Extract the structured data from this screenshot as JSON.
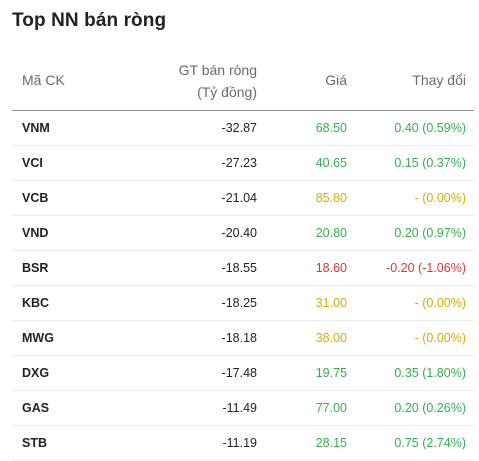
{
  "title": "Top NN bán ròng",
  "columns": {
    "symbol": "Mã CK",
    "value_line1": "GT bán ròng",
    "value_line2": "(Tỷ đồng)",
    "price": "Giá",
    "change": "Thay đổi"
  },
  "colors": {
    "up": "#2fb24c",
    "reference": "#d7ac00",
    "down": "#e8322f"
  },
  "rows": [
    {
      "symbol": "VNM",
      "value": "-32.87",
      "price": "68.50",
      "change": "0.40 (0.59%)",
      "trend": "up"
    },
    {
      "symbol": "VCI",
      "value": "-27.23",
      "price": "40.65",
      "change": "0.15 (0.37%)",
      "trend": "up"
    },
    {
      "symbol": "VCB",
      "value": "-21.04",
      "price": "85.80",
      "change": "- (0.00%)",
      "trend": "ref"
    },
    {
      "symbol": "VND",
      "value": "-20.40",
      "price": "20.80",
      "change": "0.20 (0.97%)",
      "trend": "up"
    },
    {
      "symbol": "BSR",
      "value": "-18.55",
      "price": "18.60",
      "change": "-0.20 (-1.06%)",
      "trend": "down"
    },
    {
      "symbol": "KBC",
      "value": "-18.25",
      "price": "31.00",
      "change": "- (0.00%)",
      "trend": "ref"
    },
    {
      "symbol": "MWG",
      "value": "-18.18",
      "price": "38.00",
      "change": "- (0.00%)",
      "trend": "ref"
    },
    {
      "symbol": "DXG",
      "value": "-17.48",
      "price": "19.75",
      "change": "0.35 (1.80%)",
      "trend": "up"
    },
    {
      "symbol": "GAS",
      "value": "-11.49",
      "price": "77.00",
      "change": "0.20 (0.26%)",
      "trend": "up"
    },
    {
      "symbol": "STB",
      "value": "-11.19",
      "price": "28.15",
      "change": "0.75 (2.74%)",
      "trend": "up"
    }
  ]
}
